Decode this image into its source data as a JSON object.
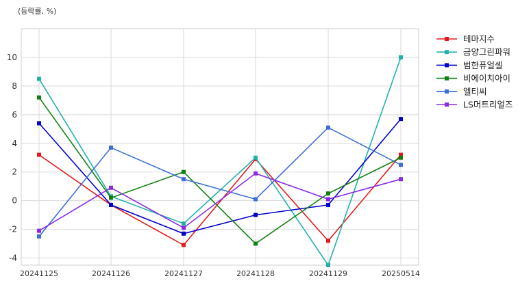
{
  "chart_data": {
    "type": "line",
    "unit_label": "(등락률, %)",
    "categories": [
      "20241125",
      "20241126",
      "20241127",
      "20241128",
      "20241129",
      "20250514"
    ],
    "ylim": [
      -4.5,
      12
    ],
    "yticks": [
      -4,
      -2,
      0,
      2,
      4,
      6,
      8,
      10
    ],
    "grid": true,
    "legend_position": "right",
    "series": [
      {
        "name": "테마지수",
        "color": "#e31a1c",
        "values": [
          3.2,
          -0.3,
          -3.1,
          2.9,
          -2.8,
          3.2
        ]
      },
      {
        "name": "금양그린파워",
        "color": "#20b2aa",
        "values": [
          8.5,
          0.3,
          -1.6,
          3.0,
          -4.5,
          10.0
        ]
      },
      {
        "name": "범한퓨얼셀",
        "color": "#0000cd",
        "values": [
          5.4,
          -0.3,
          -2.3,
          -1.0,
          -0.3,
          5.7
        ]
      },
      {
        "name": "비에이치아이",
        "color": "#108010",
        "values": [
          7.2,
          0.2,
          2.0,
          -3.0,
          0.5,
          3.0
        ]
      },
      {
        "name": "엘티씨",
        "color": "#3b6fd6",
        "values": [
          -2.5,
          3.7,
          1.5,
          0.1,
          5.1,
          2.5
        ]
      },
      {
        "name": "LS머트리얼즈",
        "color": "#8a2be2",
        "values": [
          -2.1,
          0.9,
          -1.9,
          1.9,
          0.1,
          1.5
        ]
      }
    ]
  }
}
